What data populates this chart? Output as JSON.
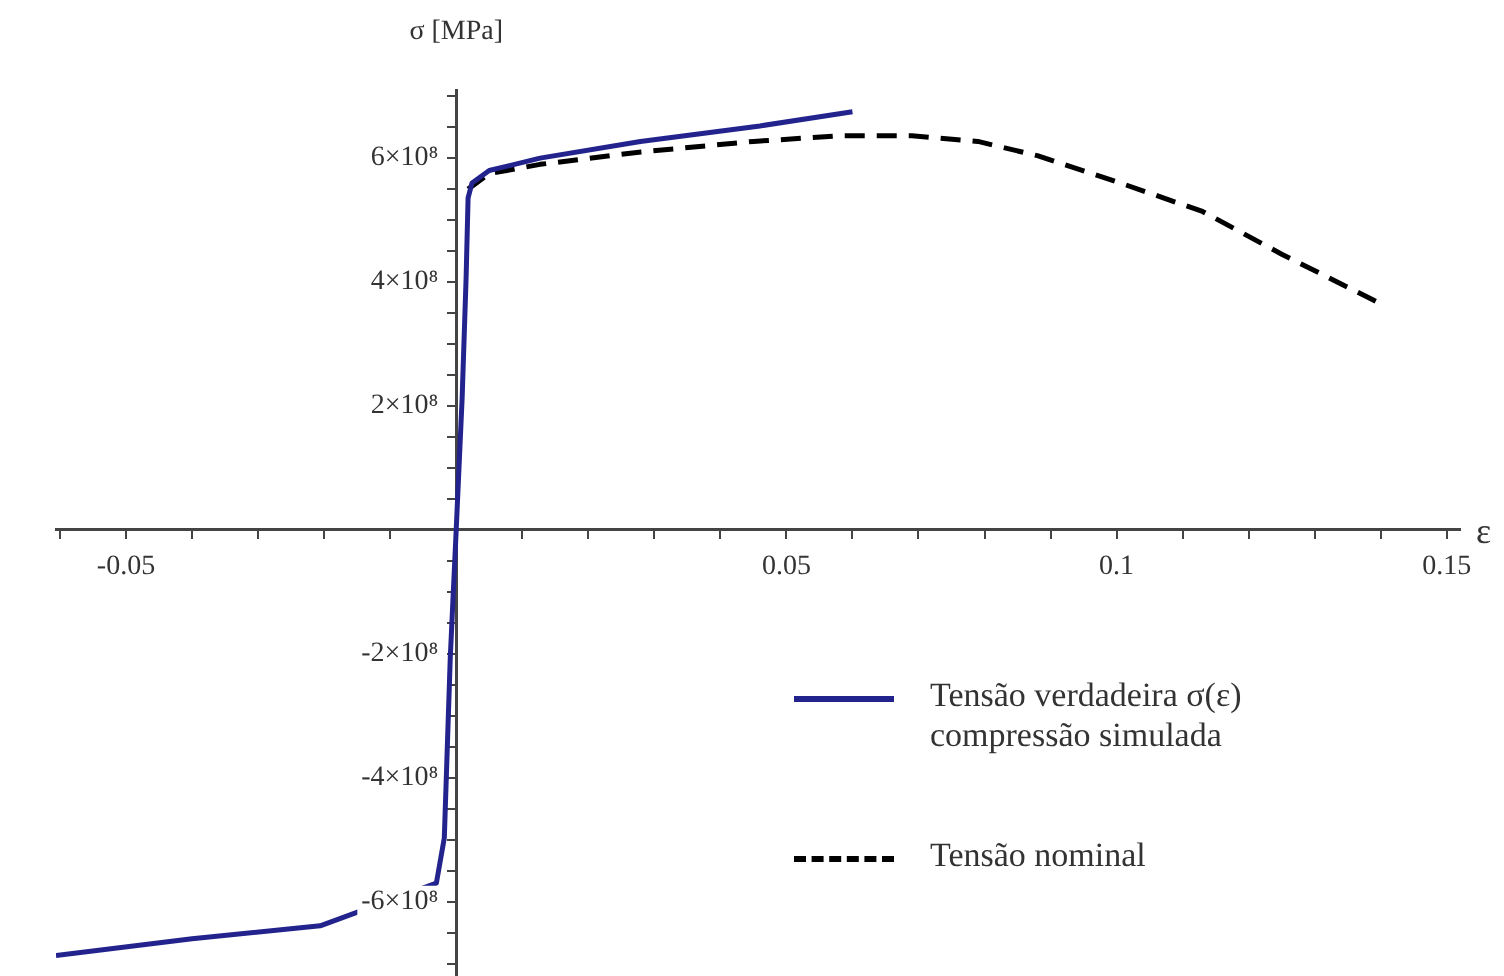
{
  "chart_data": {
    "type": "line",
    "xlabel": "ε",
    "ylabel": "σ [MPa]",
    "xlim": [
      -0.0606,
      0.152
    ],
    "ylim": [
      -720000000.0,
      710000000.0
    ],
    "xticks": [
      {
        "value": -0.06,
        "label": null
      },
      {
        "value": -0.05,
        "label": "-0.05"
      },
      {
        "value": -0.04,
        "label": null
      },
      {
        "value": -0.03,
        "label": null
      },
      {
        "value": -0.02,
        "label": null
      },
      {
        "value": -0.01,
        "label": null
      },
      {
        "value": 0.01,
        "label": null
      },
      {
        "value": 0.02,
        "label": null
      },
      {
        "value": 0.03,
        "label": null
      },
      {
        "value": 0.04,
        "label": null
      },
      {
        "value": 0.05,
        "label": "0.05"
      },
      {
        "value": 0.06,
        "label": null
      },
      {
        "value": 0.07,
        "label": null
      },
      {
        "value": 0.08,
        "label": null
      },
      {
        "value": 0.09,
        "label": null
      },
      {
        "value": 0.1,
        "label": "0.1"
      },
      {
        "value": 0.11,
        "label": null
      },
      {
        "value": 0.12,
        "label": null
      },
      {
        "value": 0.13,
        "label": null
      },
      {
        "value": 0.14,
        "label": null
      },
      {
        "value": 0.15,
        "label": "0.15"
      }
    ],
    "yticks": [
      {
        "value": -700000000.0,
        "label": null
      },
      {
        "value": -650000000.0,
        "label": null
      },
      {
        "value": -600000000.0,
        "label": "-6×10⁸"
      },
      {
        "value": -550000000.0,
        "label": null
      },
      {
        "value": -500000000.0,
        "label": null
      },
      {
        "value": -450000000.0,
        "label": null
      },
      {
        "value": -400000000.0,
        "label": "-4×10⁸"
      },
      {
        "value": -350000000.0,
        "label": null
      },
      {
        "value": -300000000.0,
        "label": null
      },
      {
        "value": -250000000.0,
        "label": null
      },
      {
        "value": -200000000.0,
        "label": "-2×10⁸"
      },
      {
        "value": -150000000.0,
        "label": null
      },
      {
        "value": -100000000.0,
        "label": null
      },
      {
        "value": -50000000.0,
        "label": null
      },
      {
        "value": 50000000.0,
        "label": null
      },
      {
        "value": 100000000.0,
        "label": null
      },
      {
        "value": 150000000.0,
        "label": null
      },
      {
        "value": 200000000.0,
        "label": "2×10⁸"
      },
      {
        "value": 250000000.0,
        "label": null
      },
      {
        "value": 300000000.0,
        "label": null
      },
      {
        "value": 350000000.0,
        "label": null
      },
      {
        "value": 400000000.0,
        "label": "4×10⁸"
      },
      {
        "value": 450000000.0,
        "label": null
      },
      {
        "value": 500000000.0,
        "label": null
      },
      {
        "value": 550000000.0,
        "label": null
      },
      {
        "value": 600000000.0,
        "label": "6×10⁸"
      },
      {
        "value": 650000000.0,
        "label": null
      },
      {
        "value": 700000000.0,
        "label": null
      }
    ],
    "grid": false,
    "legend": "bottom right",
    "marker": "none",
    "series": [
      {
        "name": "Tensão verdadeira σ(ε) compressão simulada",
        "color": "#23238e",
        "line_style": "solid",
        "x": [
          -0.0606,
          -0.04,
          -0.0206,
          -0.003,
          -0.0018,
          -0.0009,
          0,
          0.0009,
          0.0015,
          0.0018,
          0.0024,
          0.005,
          0.0127,
          0.0279,
          0.046,
          0.06
        ],
        "values": [
          -687000000.0,
          -660000000.0,
          -639000000.0,
          -570000000.0,
          -497000000.0,
          -207000000.0,
          0,
          213000000.0,
          407000000.0,
          536000000.0,
          560000000.0,
          580000000.0,
          600000000.0,
          627000000.0,
          652000000.0,
          675000000.0
        ]
      },
      {
        "name": "Tensão nominal",
        "color": "#000000",
        "line_style": "dashed",
        "x": [
          0.0018,
          0.005,
          0.0127,
          0.028,
          0.045,
          0.058,
          0.069,
          0.079,
          0.088,
          0.1,
          0.113,
          0.125,
          0.14
        ],
        "values": [
          550000000.0,
          575000000.0,
          590000000.0,
          610000000.0,
          627000000.0,
          636000000.0,
          636000000.0,
          627000000.0,
          604000000.0,
          562000000.0,
          514000000.0,
          445000000.0,
          365000000.0
        ]
      }
    ]
  }
}
